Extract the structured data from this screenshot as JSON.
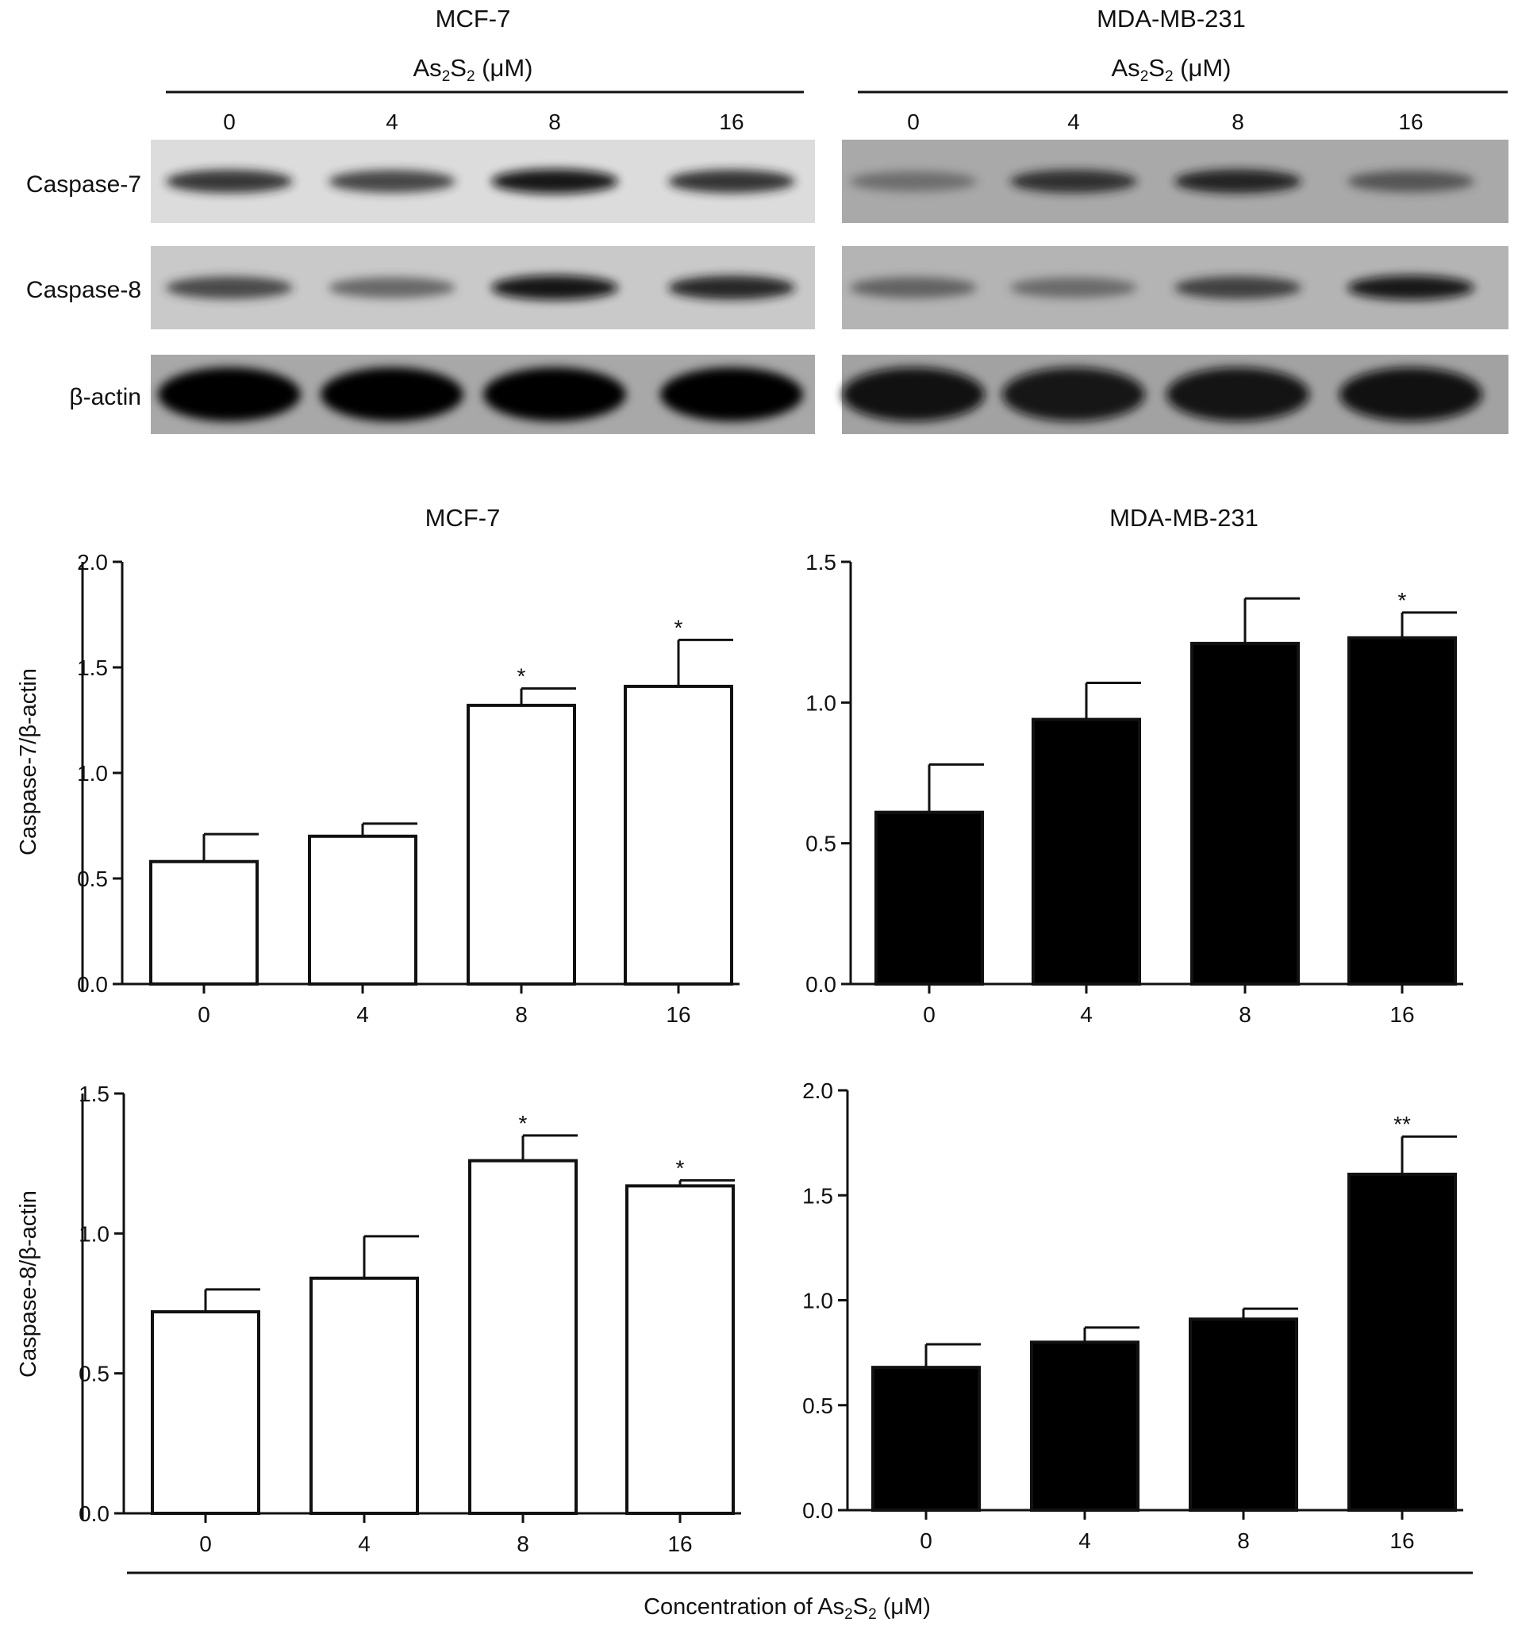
{
  "blots": {
    "panels": [
      {
        "title": "MCF-7",
        "treatment": {
          "prefix": "As",
          "s1": "2",
          "mid": "S",
          "s2": "2",
          "unit": " (μM)"
        },
        "lanes": [
          "0",
          "4",
          "8",
          "16"
        ],
        "rows": [
          {
            "label": "Caspase-7",
            "background": "#dcdcdc",
            "intensity": [
              0.78,
              0.72,
              0.92,
              0.8
            ]
          },
          {
            "label": "Caspase-8",
            "background": "#c9c9c9",
            "intensity": [
              0.7,
              0.55,
              0.93,
              0.85
            ]
          },
          {
            "label": "β-actin",
            "background": "#a8a8a8",
            "intensity": [
              1.0,
              1.0,
              1.0,
              1.0
            ]
          }
        ]
      },
      {
        "title": "MDA-MB-231",
        "treatment": {
          "prefix": "As",
          "s1": "2",
          "mid": "S",
          "s2": "2",
          "unit": " (μM)"
        },
        "lanes": [
          "0",
          "4",
          "8",
          "16"
        ],
        "rows": [
          {
            "label": "Caspase-7",
            "background": "#a9a9a9",
            "intensity": [
              0.45,
              0.78,
              0.85,
              0.6
            ]
          },
          {
            "label": "Caspase-8",
            "background": "#b4b4b4",
            "intensity": [
              0.55,
              0.5,
              0.72,
              0.9
            ]
          },
          {
            "label": "β-actin",
            "background": "#a2a2a2",
            "intensity": [
              0.95,
              0.9,
              0.92,
              0.95
            ]
          }
        ]
      }
    ]
  },
  "chart_data": [
    {
      "type": "bar",
      "title": "MCF-7",
      "ylabel": "Caspase-7/β-actin",
      "xlabel": "",
      "categories": [
        "0",
        "4",
        "8",
        "16"
      ],
      "values": [
        0.58,
        0.7,
        1.32,
        1.41
      ],
      "errors": [
        0.13,
        0.06,
        0.08,
        0.22
      ],
      "significance": [
        "",
        "",
        "*",
        "*"
      ],
      "ylim": [
        0,
        2.0
      ],
      "yticks": [
        "0.0",
        "0.5",
        "1.0",
        "1.5",
        "2.0"
      ],
      "bar_fill": "#ffffff",
      "grid": false,
      "legend": "none"
    },
    {
      "type": "bar",
      "title": "MDA-MB-231",
      "ylabel": "",
      "xlabel": "",
      "categories": [
        "0",
        "4",
        "8",
        "16"
      ],
      "values": [
        0.61,
        0.94,
        1.21,
        1.23
      ],
      "errors": [
        0.17,
        0.13,
        0.16,
        0.09
      ],
      "significance": [
        "",
        "",
        "",
        "*"
      ],
      "ylim": [
        0,
        1.5
      ],
      "yticks": [
        "0.0",
        "0.5",
        "1.0",
        "1.5"
      ],
      "bar_fill": "#000000",
      "grid": false,
      "legend": "none"
    },
    {
      "type": "bar",
      "title": "",
      "ylabel": "Caspase-8/β-actin",
      "xlabel": "",
      "categories": [
        "0",
        "4",
        "8",
        "16"
      ],
      "values": [
        0.72,
        0.84,
        1.26,
        1.17
      ],
      "errors": [
        0.08,
        0.15,
        0.09,
        0.02
      ],
      "significance": [
        "",
        "",
        "*",
        "*"
      ],
      "ylim": [
        0,
        1.5
      ],
      "yticks": [
        "0.0",
        "0.5",
        "1.0",
        "1.5"
      ],
      "bar_fill": "#ffffff",
      "grid": false,
      "legend": "none"
    },
    {
      "type": "bar",
      "title": "",
      "ylabel": "",
      "xlabel": "",
      "categories": [
        "0",
        "4",
        "8",
        "16"
      ],
      "values": [
        0.68,
        0.8,
        0.91,
        1.6
      ],
      "errors": [
        0.11,
        0.07,
        0.05,
        0.18
      ],
      "significance": [
        "",
        "",
        "",
        "**"
      ],
      "ylim": [
        0,
        2.0
      ],
      "yticks": [
        "0.0",
        "0.5",
        "1.0",
        "1.5",
        "2.0"
      ],
      "bar_fill": "#000000",
      "grid": false,
      "legend": "none"
    }
  ],
  "shared_xlabel": {
    "prefix": "Concentration of As",
    "s1": "2",
    "mid": "S",
    "s2": "2",
    "unit": " (μM)"
  }
}
